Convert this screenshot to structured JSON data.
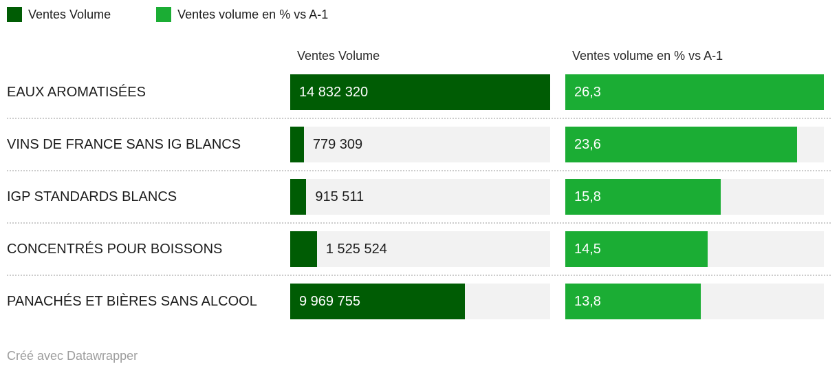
{
  "legend": {
    "items": [
      {
        "label": "Ventes Volume",
        "color": "#005c04"
      },
      {
        "label": "Ventes volume en % vs A-1",
        "color": "#1bad34"
      }
    ]
  },
  "columns": {
    "left_header": "Ventes Volume",
    "right_header": "Ventes volume en % vs A-1"
  },
  "chart_data": {
    "type": "bar",
    "orientation": "horizontal",
    "title": "",
    "categories": [
      "EAUX AROMATISÉES",
      "VINS DE FRANCE SANS IG BLANCS",
      "IGP STANDARDS BLANCS",
      "CONCENTRÉS POUR BOISSONS",
      "PANACHÉS ET BIÈRES SANS ALCOOL"
    ],
    "series": [
      {
        "name": "Ventes Volume",
        "color": "#005c04",
        "values": [
          14832320,
          779309,
          915511,
          1525524,
          9969755
        ],
        "labels": [
          "14 832 320",
          "779 309",
          "915 511",
          "1 525 524",
          "9 969 755"
        ]
      },
      {
        "name": "Ventes volume en % vs A-1",
        "color": "#1bad34",
        "values": [
          26.3,
          23.6,
          15.8,
          14.5,
          13.8
        ],
        "labels": [
          "26,3",
          "23,6",
          "15,8",
          "14,5",
          "13,8"
        ]
      }
    ],
    "track_color": "#f2f2f2",
    "value_labels": "inside bar when bar is wide, right of bar otherwise",
    "axis_scaling": "each column scaled independently, max value = full track width",
    "legend_position": "top-left",
    "grid": false
  },
  "footer": {
    "credit": "Créé avec Datawrapper"
  }
}
